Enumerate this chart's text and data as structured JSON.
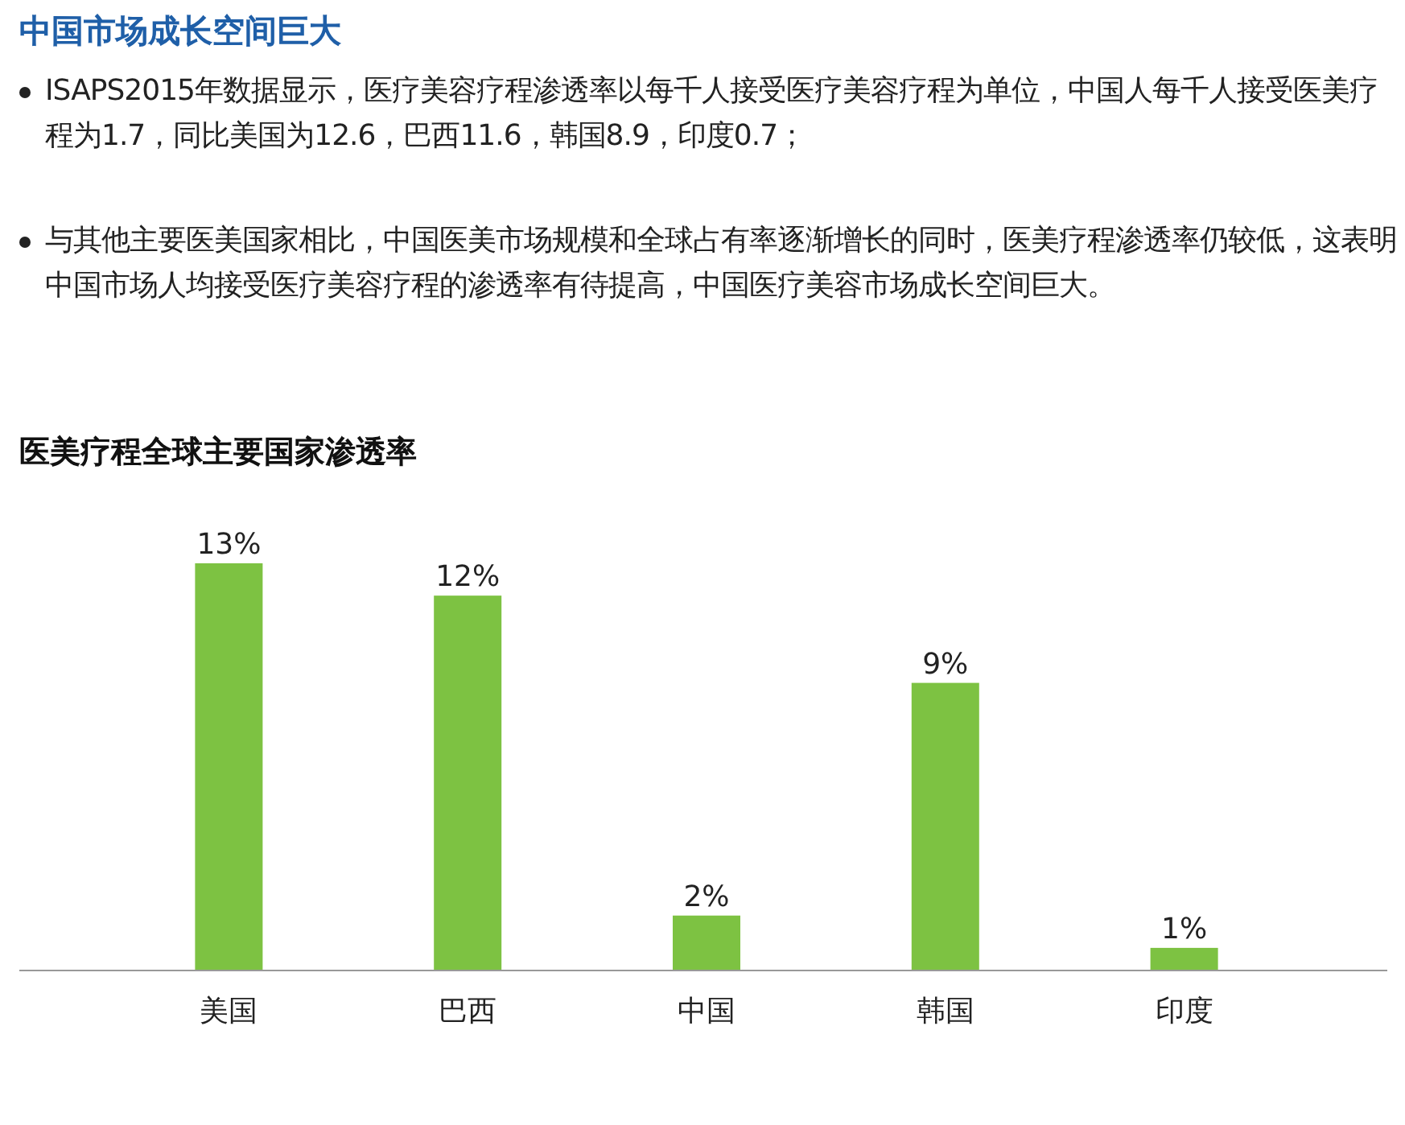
{
  "chart_data": {
    "type": "bar",
    "title": "中国市场成长空间巨大",
    "subtitle": "医美疗程全球主要国家渗透率",
    "annotations": [
      "ISAPS2015年数据显示，医疗美容疗程渗透率以每千人接受医疗美容疗程为单位，中国人每千人接受医美疗程为1.7，同比美国为12.6，巴西11.6，韩国8.9，印度0.7；",
      "与其他主要医美国家相比，中国医美市场规模和全球占有率逐渐增长的同时，医美疗程渗透率仍较低，这表明中国市场人均接受医疗美容疗程的渗透率有待提高，中国医疗美容市场成长空间巨大。"
    ],
    "categories": [
      "美国",
      "巴西",
      "中国",
      "韩国",
      "印度"
    ],
    "values": [
      12.6,
      11.6,
      1.7,
      8.9,
      0.7
    ],
    "value_labels": [
      "13%",
      "12%",
      "2%",
      "9%",
      "1%"
    ],
    "color": "#7dc242"
  }
}
